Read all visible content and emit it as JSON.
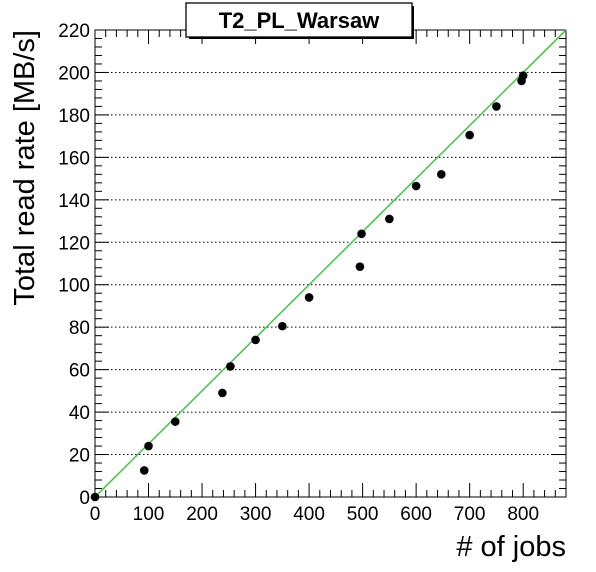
{
  "chart_data": {
    "type": "scatter",
    "title": "T2_PL_Warsaw",
    "xlabel": "# of jobs",
    "ylabel": "Total read rate [MB/s]",
    "xlim": [
      0,
      880
    ],
    "ylim": [
      0,
      220
    ],
    "x_ticks": [
      0,
      100,
      200,
      300,
      400,
      500,
      600,
      700,
      800
    ],
    "y_ticks": [
      0,
      20,
      40,
      60,
      80,
      100,
      120,
      140,
      160,
      180,
      200,
      220
    ],
    "grid": "horizontal dotted",
    "points": [
      {
        "x": 0,
        "y": 0
      },
      {
        "x": 92,
        "y": 12.5
      },
      {
        "x": 100,
        "y": 24
      },
      {
        "x": 150,
        "y": 35.5
      },
      {
        "x": 238,
        "y": 49
      },
      {
        "x": 253,
        "y": 61.5
      },
      {
        "x": 300,
        "y": 74
      },
      {
        "x": 350,
        "y": 80.5
      },
      {
        "x": 400,
        "y": 94
      },
      {
        "x": 495,
        "y": 108.5
      },
      {
        "x": 498,
        "y": 124
      },
      {
        "x": 550,
        "y": 131
      },
      {
        "x": 600,
        "y": 146.5
      },
      {
        "x": 647,
        "y": 152
      },
      {
        "x": 700,
        "y": 170.5
      },
      {
        "x": 750,
        "y": 184
      },
      {
        "x": 797,
        "y": 196
      },
      {
        "x": 800,
        "y": 198.5
      }
    ],
    "fit_line": {
      "x": [
        0,
        880
      ],
      "y": [
        0,
        220
      ],
      "color": "#55c055"
    },
    "point_color": "#000000"
  }
}
